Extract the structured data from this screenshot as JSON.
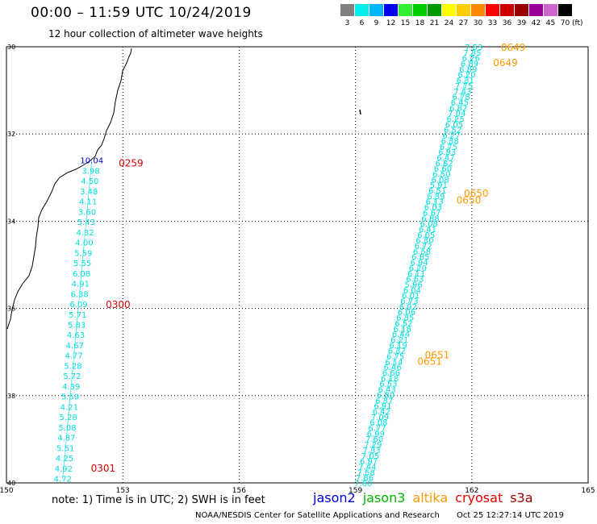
{
  "header": {
    "title": "00:00 – 11:59 UTC 10/24/2019",
    "subtitle": "12 hour collection of altimeter wave heights"
  },
  "legend": {
    "unit": "(ft)",
    "bins": [
      {
        "label": "3",
        "color": "#808080"
      },
      {
        "label": "6",
        "color": "#00eeee"
      },
      {
        "label": "9",
        "color": "#00b4ff"
      },
      {
        "label": "12",
        "color": "#0000ee"
      },
      {
        "label": "15",
        "color": "#33ee33"
      },
      {
        "label": "18",
        "color": "#00cc00"
      },
      {
        "label": "21",
        "color": "#009900"
      },
      {
        "label": "24",
        "color": "#ffff00"
      },
      {
        "label": "27",
        "color": "#ffcc00"
      },
      {
        "label": "30",
        "color": "#ff8800"
      },
      {
        "label": "33",
        "color": "#ff0000"
      },
      {
        "label": "36",
        "color": "#cc0000"
      },
      {
        "label": "39",
        "color": "#990000"
      },
      {
        "label": "42",
        "color": "#990099"
      },
      {
        "label": "45",
        "color": "#cc66cc"
      },
      {
        "label": "70",
        "color": "#000000"
      }
    ]
  },
  "map": {
    "lon_range": [
      150,
      165
    ],
    "lat_range": [
      -40,
      -30
    ],
    "lon_ticks": [
      "150",
      "153",
      "156",
      "159",
      "162",
      "165"
    ],
    "lat_ticks": [
      "30",
      "32",
      "34",
      "36",
      "38",
      "40"
    ],
    "tracks": [
      {
        "satellite": "cryosat",
        "color": "#00dddd",
        "start": [
          152.2,
          -32.6
        ],
        "end": [
          151.45,
          -39.9
        ],
        "values": [
          "10.04",
          "3.98",
          "4.50",
          "3.48",
          "4.11",
          "3.60",
          "5.43",
          "4.32",
          "4.00",
          "5.59",
          "5.55",
          "6.08",
          "4.91",
          "6.38",
          "6.09",
          "5.71",
          "5.83",
          "4.63",
          "4.67",
          "4.77",
          "5.28",
          "5.72",
          "4.39",
          "5.59",
          "4.21",
          "5.28",
          "5.08",
          "4.87",
          "5.51",
          "4.25",
          "4.92",
          "4.72"
        ],
        "value_colors": {
          "0": "#0000cc"
        },
        "time_labels": [
          {
            "text": "0259",
            "lat": -32.65,
            "lon_offset": 0.7
          },
          {
            "text": "0300",
            "lat": -35.9,
            "lon_offset": 0.7
          },
          {
            "text": "0301",
            "lat": -39.65,
            "lon_offset": 0.7
          }
        ],
        "time_color": "#dd0000"
      },
      {
        "satellite": "altika",
        "color": "#00dddd",
        "start": [
          162.05,
          -30.0
        ],
        "end": [
          159.2,
          -40.0
        ],
        "values": [
          "7.53",
          "7.35",
          "6.26",
          "6.89",
          "6.89",
          "6.20",
          "6.31",
          "7.75",
          "7.43",
          "6.78",
          "6.45",
          "6.82",
          "7.04",
          "6.25",
          "6.05",
          "6.52",
          "6.27",
          "6.38",
          "6.75",
          "6.93",
          "6.47",
          "6.82",
          "6.60",
          "6.50",
          "6.08",
          "5.91",
          "6.51",
          "6.39",
          "6.13",
          "6.03",
          "6.67",
          "6.88",
          "6.08",
          "6.41",
          "6.05",
          "6.30",
          "6.72",
          "6.58",
          "6.85",
          "6.94",
          "6.20",
          "6.11",
          "6.63",
          "5.96",
          "6.04",
          "6.01",
          "6.73",
          "6.92",
          "6.06",
          "6.35",
          "6.52",
          "6.18",
          "6.44",
          "6.21",
          "6.19",
          "6.32",
          "6.75",
          "6.14",
          "6.46",
          "6.66",
          "6.18",
          "6.53",
          "6.43",
          "6.80",
          "6.37",
          "6.91",
          "6.42",
          "7.09",
          "6.08",
          "6.77",
          "6.99",
          "7.60",
          "7.29",
          "7.33",
          "7.05",
          "6.97",
          "7.44",
          "7.58",
          "7.86",
          "7.60"
        ],
        "time_labels": [
          {
            "text": "0649",
            "lat": -30.0,
            "lon_offset": 0.7
          },
          {
            "text": "0649",
            "lat": -30.35,
            "lon_offset": 0.6
          },
          {
            "text": "0650",
            "lat": -33.35,
            "lon_offset": 0.7
          },
          {
            "text": "0650",
            "lat": -33.5,
            "lon_offset": 0.55
          },
          {
            "text": "0651",
            "lat": -37.05,
            "lon_offset": 0.75
          },
          {
            "text": "0651",
            "lat": -37.2,
            "lon_offset": 0.6
          }
        ],
        "time_color": "#ff9900"
      }
    ]
  },
  "note": "note:  1) Time is in UTC;  2) SWH is in feet",
  "satellites": [
    {
      "name": "jason2",
      "color": "#0000ee"
    },
    {
      "name": "jason3",
      "color": "#00bb00"
    },
    {
      "name": "altika",
      "color": "#ff9900"
    },
    {
      "name": "cryosat",
      "color": "#ee0000"
    },
    {
      "name": "s3a",
      "color": "#990000"
    }
  ],
  "footer": {
    "credit": "NOAA/NESDIS Center for Satellite Applications and Research",
    "timestamp": "Oct 25 12:27:14 UTC 2019"
  }
}
